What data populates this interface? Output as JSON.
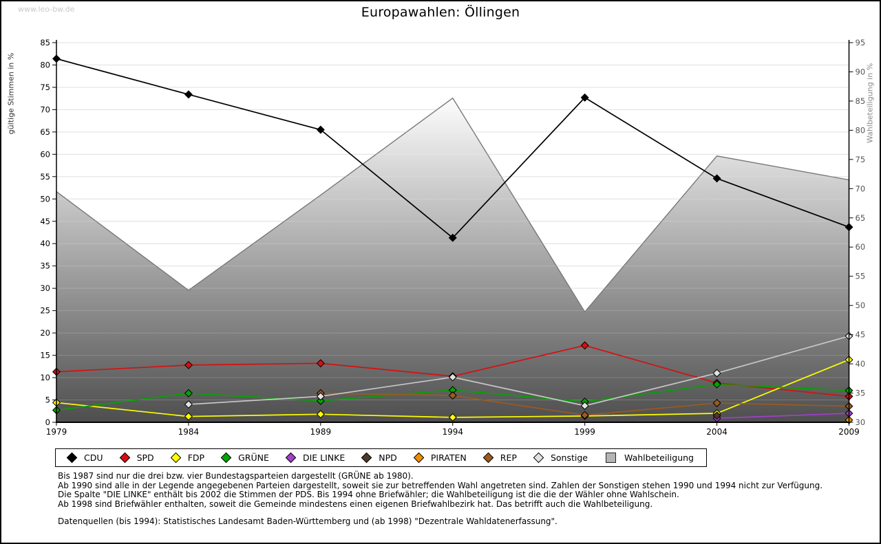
{
  "watermark": "www.leo-bw.de",
  "title": "Europawahlen: Öllingen",
  "axes": {
    "left_label": "gültige Stimmen in %",
    "right_label": "Wahlbeteiligung in %",
    "left_ticks": [
      0,
      5,
      10,
      15,
      20,
      25,
      30,
      35,
      40,
      45,
      50,
      55,
      60,
      65,
      70,
      75,
      80,
      85
    ],
    "right_ticks": [
      30,
      35,
      40,
      45,
      50,
      55,
      60,
      65,
      70,
      75,
      80,
      85,
      90,
      95
    ],
    "year_ticks": [
      "1979",
      "1984",
      "1989",
      "1994",
      "1999",
      "2004",
      "2009"
    ]
  },
  "chart_data": {
    "type": "line",
    "title": "Europawahlen: Öllingen",
    "x": [
      1979,
      1984,
      1989,
      1994,
      1999,
      2004,
      2009
    ],
    "left_axis": {
      "label": "gültige Stimmen in %",
      "range": [
        0,
        85
      ],
      "tick_step": 5,
      "grid": true
    },
    "right_axis": {
      "label": "Wahlbeteiligung in %",
      "range": [
        30,
        95
      ],
      "tick_step": 5
    },
    "legend_position": "bottom",
    "series": [
      {
        "name": "CDU",
        "color": "#000000",
        "axis": "left",
        "marker": "diamond",
        "values": [
          81.4,
          73.4,
          65.5,
          41.3,
          72.7,
          54.6,
          43.7
        ]
      },
      {
        "name": "SPD",
        "color": "#d51010",
        "axis": "left",
        "marker": "diamond",
        "values": [
          11.3,
          12.8,
          13.2,
          10.3,
          17.2,
          8.8,
          5.8
        ]
      },
      {
        "name": "FDP",
        "color": "#ffff00",
        "axis": "left",
        "marker": "diamond",
        "values": [
          4.4,
          1.3,
          1.8,
          1.1,
          1.4,
          2.0,
          14.0
        ]
      },
      {
        "name": "GRÜNE",
        "color": "#00a400",
        "axis": "left",
        "marker": "diamond",
        "values": [
          2.7,
          6.5,
          4.8,
          7.2,
          4.6,
          8.5,
          7.1
        ]
      },
      {
        "name": "DIE LINKE",
        "color": "#a040c8",
        "axis": "left",
        "marker": "diamond",
        "values": [
          null,
          null,
          null,
          null,
          null,
          0.9,
          2.0
        ]
      },
      {
        "name": "NPD",
        "color": "#4d3a26",
        "axis": "left",
        "marker": "diamond",
        "values": [
          null,
          null,
          null,
          null,
          null,
          1.5,
          null
        ]
      },
      {
        "name": "PIRATEN",
        "color": "#ef8e00",
        "axis": "left",
        "marker": "diamond",
        "values": [
          null,
          null,
          null,
          null,
          null,
          null,
          0.5
        ]
      },
      {
        "name": "REP",
        "color": "#9c5a1e",
        "axis": "left",
        "marker": "diamond",
        "values": [
          null,
          null,
          6.5,
          6.0,
          1.6,
          4.3,
          3.6
        ]
      },
      {
        "name": "Sonstige",
        "color": "#c8c8c8",
        "fill": "#e2e2e2",
        "axis": "left",
        "marker": "diamond",
        "values": [
          null,
          4.0,
          5.8,
          10.1,
          3.7,
          11.0,
          19.3
        ]
      },
      {
        "name": "Wahlbeteiligung",
        "color": "#787878",
        "axis": "right",
        "type": "area",
        "gradient": [
          "#fdfdfd",
          "#4e4e4e"
        ],
        "values": [
          69.5,
          52.6,
          68.9,
          85.5,
          48.9,
          75.6,
          71.5
        ]
      }
    ]
  },
  "notes": [
    "Bis 1987 sind nur die drei bzw. vier Bundestagsparteien dargestellt (GRÜNE ab 1980).",
    "Ab 1990 sind alle in der Legende angegebenen Parteien dargestellt, soweit sie zur betreffenden Wahl angetreten sind. Zahlen der Sonstigen stehen 1990 und 1994 nicht zur Verfügung.",
    "Die Spalte \"DIE LINKE\" enthält bis 2002 die Stimmen der PDS. Bis 1994 ohne Briefwähler; die Wahlbeteiligung ist die die der Wähler ohne Wahlschein.",
    "Ab 1998 sind Briefwähler enthalten, soweit die Gemeinde mindestens einen eigenen Briefwahlbezirk hat. Das betrifft auch die Wahlbeteiligung."
  ],
  "source": "Datenquellen (bis 1994): Statistisches Landesamt Baden-Württemberg und (ab 1998) \"Dezentrale Wahldatenerfassung\"."
}
